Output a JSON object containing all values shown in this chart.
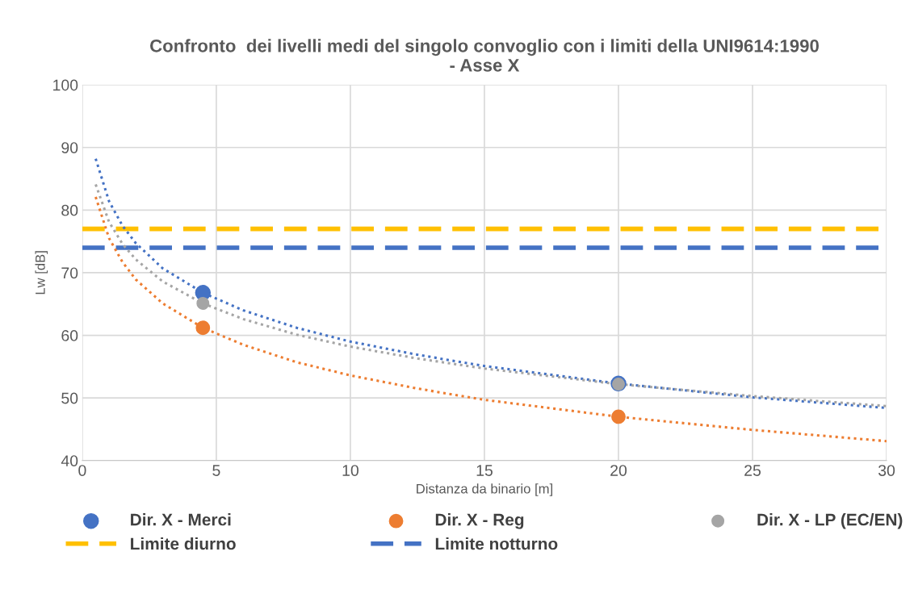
{
  "chart_data": {
    "type": "scatter",
    "title": "Confronto  dei livelli medi del singolo convoglio con i limiti della UNI9614:1990\n- Asse X",
    "xlabel": "Distanza da binario [m]",
    "ylabel": "Lw [dB]",
    "xlim": [
      0,
      30
    ],
    "xticks": [
      0,
      5,
      10,
      15,
      20,
      25,
      30
    ],
    "ylim": [
      40,
      100
    ],
    "yticks": [
      40,
      50,
      60,
      70,
      80,
      90,
      100
    ],
    "grid": true,
    "legend": "bottom",
    "marker": "circle",
    "series": [
      {
        "name": "Dir. X - Merci",
        "color": "#4472c4",
        "x": [
          4.5,
          20
        ],
        "values": [
          66.8,
          52.3
        ]
      },
      {
        "name": "Dir. X - Reg",
        "color": "#ed7d31",
        "x": [
          4.5,
          20
        ],
        "values": [
          61.2,
          47.0
        ]
      },
      {
        "name": "Dir. X - LP (EC/EN)",
        "color": "#a5a5a5",
        "x": [
          4.5,
          20
        ],
        "values": [
          65.1,
          52.2
        ]
      },
      {
        "type": "line",
        "color": "#4472c4",
        "line_style": "dotted",
        "marker": "none",
        "x": [
          0.5,
          1,
          1.5,
          2,
          3,
          4.5,
          6,
          8,
          10,
          12.5,
          15,
          20,
          25,
          30
        ],
        "values": [
          88.2,
          81.4,
          77.5,
          74.7,
          70.7,
          66.8,
          64.0,
          61.2,
          59.0,
          56.9,
          55.1,
          52.3,
          50.1,
          48.4
        ]
      },
      {
        "type": "line",
        "color": "#ed7d31",
        "line_style": "dotted",
        "marker": "none",
        "x": [
          0.5,
          1,
          1.5,
          2,
          3,
          4.5,
          6,
          8,
          10,
          12.5,
          15,
          20,
          25,
          30
        ],
        "values": [
          82.1,
          75.5,
          71.7,
          68.9,
          65.1,
          61.2,
          58.5,
          55.7,
          53.6,
          51.5,
          49.7,
          47.0,
          44.9,
          43.1
        ]
      },
      {
        "type": "line",
        "color": "#a5a5a5",
        "line_style": "dotted",
        "marker": "none",
        "x": [
          0.5,
          1,
          1.5,
          2,
          3,
          4.5,
          6,
          8,
          10,
          12.5,
          15,
          20,
          25,
          30
        ],
        "values": [
          84.1,
          78.1,
          74.6,
          72.1,
          68.6,
          65.1,
          62.6,
          60.1,
          58.2,
          56.3,
          54.7,
          52.2,
          50.3,
          48.7
        ]
      }
    ],
    "ref_lines": [
      {
        "axis": "y",
        "value": 77,
        "label": "Limite diurno",
        "color": "#ffc000",
        "line_style": "dashed"
      },
      {
        "axis": "y",
        "value": 74,
        "label": "Limite notturno",
        "color": "#4472c4",
        "line_style": "dashed"
      }
    ]
  }
}
